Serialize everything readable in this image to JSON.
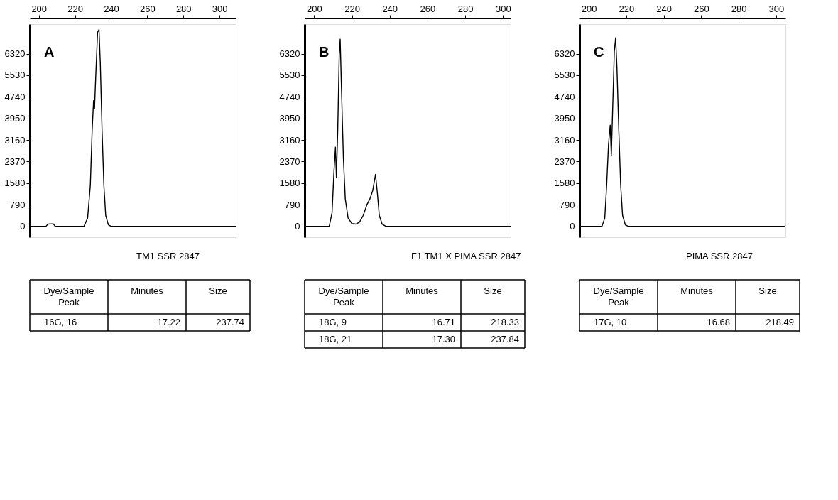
{
  "chart_data": [
    {
      "type": "line",
      "xlim": [
        195,
        309
      ],
      "ylim": [
        -400,
        7400
      ],
      "xticks": [
        200,
        220,
        240,
        260,
        280,
        300
      ],
      "yticks": [
        0,
        790,
        1580,
        2370,
        3160,
        3950,
        4740,
        5530,
        6320
      ],
      "grid": false,
      "line_style": "solid",
      "marker": "none",
      "x": [
        195,
        204,
        205,
        208,
        209,
        225,
        227,
        228.5,
        229.5,
        230.3,
        230.8,
        231.5,
        232.5,
        233.3,
        234,
        235,
        236,
        237,
        238.5,
        240,
        309
      ],
      "series": [
        {
          "color": "#000000",
          "values": [
            0,
            0,
            80,
            90,
            0,
            0,
            300,
            1500,
            3500,
            4600,
            4300,
            5500,
            7100,
            7200,
            6000,
            3500,
            1500,
            400,
            50,
            0,
            0
          ]
        }
      ],
      "annotations": [
        "A",
        "TM1 SSR 2847",
        "Dye/Sample Peak",
        "Minutes",
        "Size",
        "16G, 16",
        "17.22",
        "237.74"
      ]
    },
    {
      "type": "line",
      "xlim": [
        195,
        304
      ],
      "ylim": [
        -400,
        7400
      ],
      "xticks": [
        200,
        220,
        240,
        260,
        280,
        300
      ],
      "yticks": [
        0,
        790,
        1580,
        2370,
        3160,
        3950,
        4740,
        5530,
        6320
      ],
      "grid": false,
      "line_style": "solid",
      "marker": "none",
      "x": [
        195,
        208,
        209.5,
        210.5,
        211.3,
        211.8,
        212.5,
        213.3,
        213.8,
        214.5,
        215.5,
        216.5,
        218,
        220,
        222,
        224,
        226,
        228,
        229.5,
        231,
        232.5,
        233.5,
        234.5,
        236,
        238,
        304
      ],
      "series": [
        {
          "color": "#000000",
          "values": [
            0,
            0,
            500,
            2000,
            2900,
            1800,
            3500,
            6300,
            6850,
            5000,
            2500,
            1000,
            300,
            100,
            80,
            150,
            400,
            800,
            1000,
            1300,
            1900,
            1200,
            400,
            80,
            0,
            0
          ]
        }
      ],
      "annotations": [
        "B",
        "F1 TM1 X PIMA SSR 2847",
        "Dye/Sample Peak",
        "Minutes",
        "Size",
        "18G, 9",
        "16.71",
        "218.33",
        "18G, 21",
        "17.30",
        "237.84"
      ]
    },
    {
      "type": "line",
      "xlim": [
        195,
        305
      ],
      "ylim": [
        -400,
        7400
      ],
      "xticks": [
        200,
        220,
        240,
        260,
        280,
        300
      ],
      "yticks": [
        0,
        790,
        1580,
        2370,
        3160,
        3950,
        4740,
        5530,
        6320
      ],
      "grid": false,
      "line_style": "solid",
      "marker": "none",
      "x": [
        195,
        207,
        208.5,
        209.5,
        210.5,
        211.4,
        212,
        212.8,
        213.6,
        214.3,
        215,
        216,
        217,
        218,
        219.5,
        221,
        305
      ],
      "series": [
        {
          "color": "#000000",
          "values": [
            0,
            0,
            300,
            1500,
            3000,
            3700,
            2600,
            4500,
            6400,
            6900,
            5800,
            3500,
            1500,
            400,
            50,
            0,
            0
          ]
        }
      ],
      "annotations": [
        "C",
        "PIMA SSR 2847",
        "Dye/Sample Peak",
        "Minutes",
        "Size",
        "17G, 10",
        "16.68",
        "218.49"
      ]
    }
  ]
}
